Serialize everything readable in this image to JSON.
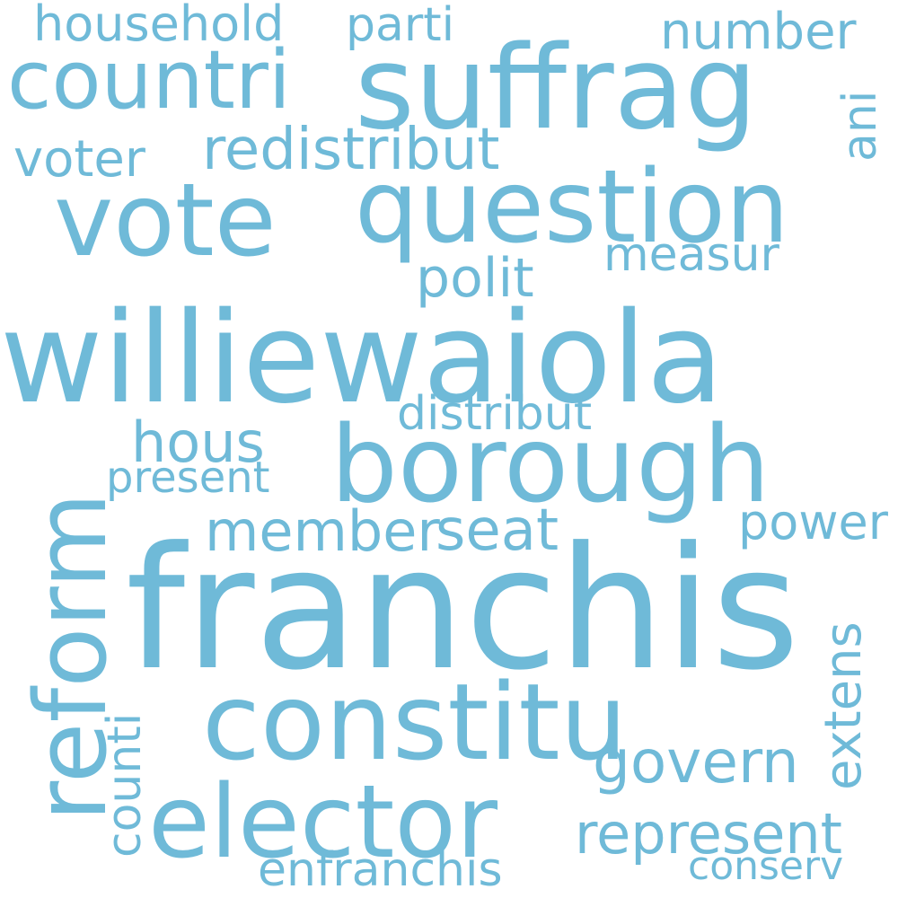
{
  "color": "#6fbad8",
  "background": "#ffffff",
  "words": {
    "household": "household",
    "parti": "parti",
    "number": "number",
    "countri": "countri",
    "suffrag": "suffrag",
    "ani": "ani",
    "voter": "voter",
    "redistribut": "redistribut",
    "vote": "vote",
    "question": "question",
    "measur": "measur",
    "polit": "polit",
    "williewaiola": "williewaiola",
    "distribut": "distribut",
    "hous": "hous",
    "borough": "borough",
    "reform": "reform",
    "present": "present",
    "member": "member",
    "seat": "seat",
    "power": "power",
    "franchis": "franchis",
    "extens": "extens",
    "constitu": "constitu",
    "counti": "counti",
    "govern": "govern",
    "elector": "elector",
    "represent": "represent",
    "enfranchis": "enfranchis",
    "conserv": "conserv"
  }
}
